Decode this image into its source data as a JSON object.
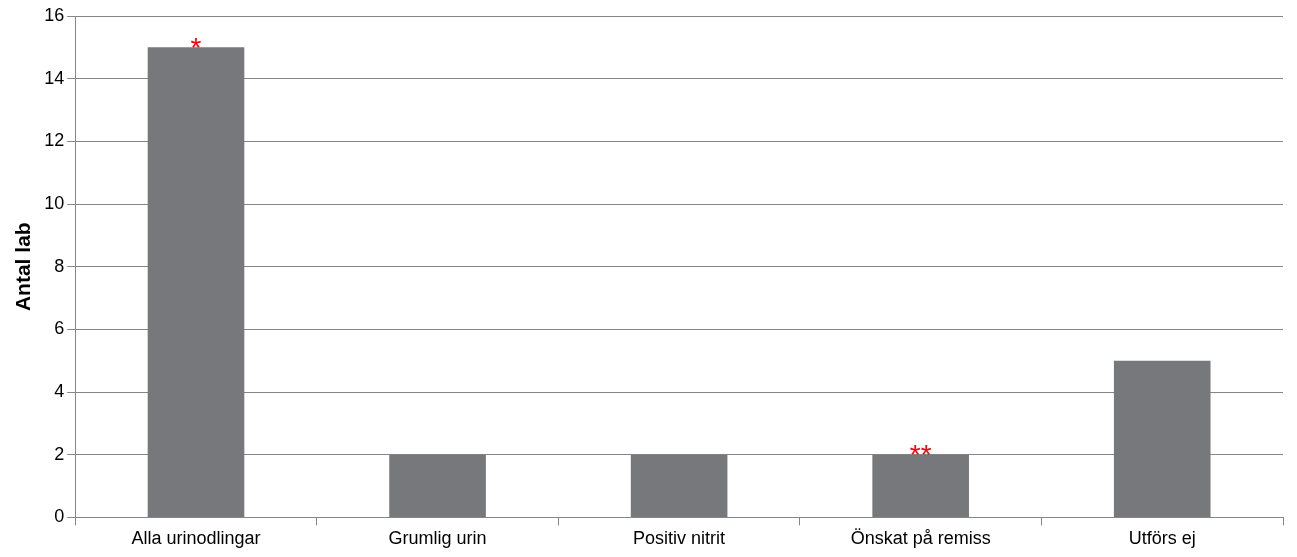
{
  "chart_data": {
    "type": "bar",
    "ylabel": "Antal lab",
    "categories": [
      "Alla urinodlingar",
      "Grumlig urin",
      "Positiv nitrit",
      "Önskat på remiss",
      "Utförs ej"
    ],
    "values": [
      15,
      2,
      2,
      2,
      5
    ],
    "color": "#77787b",
    "ylim": [
      0,
      16
    ],
    "yticks": [
      0,
      2,
      4,
      6,
      8,
      10,
      12,
      14,
      16
    ],
    "grid": "y",
    "legend": false,
    "annotations": [
      {
        "text": "*",
        "x": "Alla urinodlingar",
        "y": 15
      },
      {
        "text": "**",
        "x": "Önskat på remiss",
        "y": 2
      }
    ]
  }
}
